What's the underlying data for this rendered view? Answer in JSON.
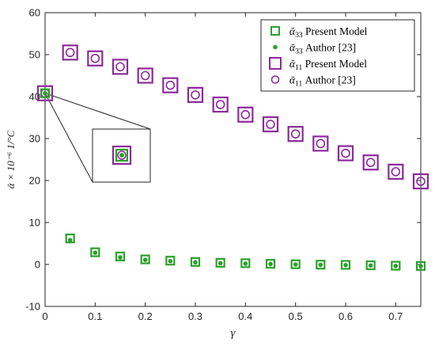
{
  "chart_data": {
    "type": "scatter",
    "title": "",
    "xlabel": "γ",
    "ylabel": "ᾱ × 10⁻⁶   1/°C",
    "xlim": [
      0,
      0.75
    ],
    "ylim": [
      -10,
      60
    ],
    "x_ticks": [
      "0",
      "0.1",
      "0.2",
      "0.3",
      "0.4",
      "0.5",
      "0.6",
      "0.7"
    ],
    "y_ticks": [
      "-10",
      "0",
      "10",
      "20",
      "30",
      "40",
      "50",
      "60"
    ],
    "grid": false,
    "legend_position": "top-right",
    "colors": {
      "alpha33": "#2ca02c",
      "alpha11": "#8b2b9a"
    },
    "series": [
      {
        "name": "ᾱ₃₃ Present Model",
        "marker": "square",
        "x": [
          0,
          0.05,
          0.1,
          0.15,
          0.2,
          0.25,
          0.3,
          0.35,
          0.4,
          0.45,
          0.5,
          0.55,
          0.6,
          0.65,
          0.7,
          0.75
        ],
        "y": [
          40.8,
          6.2,
          2.9,
          1.9,
          1.2,
          0.9,
          0.6,
          0.4,
          0.3,
          0.15,
          0.05,
          -0.05,
          -0.1,
          -0.2,
          -0.3,
          -0.35
        ]
      },
      {
        "name": "ᾱ₃₃ Author [23]",
        "marker": "dot",
        "x": [
          0,
          0.05,
          0.1,
          0.15,
          0.2,
          0.25,
          0.3,
          0.35,
          0.4,
          0.45,
          0.5,
          0.55,
          0.6,
          0.65,
          0.7,
          0.75
        ],
        "y": [
          40.8,
          5.8,
          2.8,
          1.7,
          1.1,
          0.8,
          0.5,
          0.3,
          0.2,
          0.1,
          0.0,
          -0.1,
          -0.15,
          -0.25,
          -0.35,
          -0.4
        ]
      },
      {
        "name": "ᾱ₁₁ Present Model",
        "marker": "square",
        "x": [
          0,
          0.05,
          0.1,
          0.15,
          0.2,
          0.25,
          0.3,
          0.35,
          0.4,
          0.45,
          0.5,
          0.55,
          0.6,
          0.65,
          0.7,
          0.75
        ],
        "y": [
          40.8,
          50.5,
          49.1,
          47.1,
          45.0,
          42.7,
          40.4,
          38.1,
          35.7,
          33.4,
          31.1,
          28.8,
          26.5,
          24.3,
          22.1,
          19.8
        ]
      },
      {
        "name": "ᾱ₁₁ Author [23]",
        "marker": "circle",
        "x": [
          0,
          0.05,
          0.1,
          0.15,
          0.2,
          0.25,
          0.3,
          0.35,
          0.4,
          0.45,
          0.5,
          0.55,
          0.6,
          0.65,
          0.7,
          0.75
        ],
        "y": [
          40.8,
          50.5,
          49.1,
          47.1,
          45.0,
          42.7,
          40.4,
          38.1,
          35.7,
          33.4,
          31.1,
          28.8,
          26.5,
          24.3,
          22.1,
          19.8
        ]
      }
    ],
    "legend": [
      {
        "sym": "ᾱ",
        "sub": "33",
        "text": " Present Model",
        "series": 0
      },
      {
        "sym": "ᾱ",
        "sub": "33",
        "text": " Author [23]",
        "series": 1
      },
      {
        "sym": "ᾱ",
        "sub": "11",
        "text": " Present Model",
        "series": 2
      },
      {
        "sym": "ᾱ",
        "sub": "11",
        "text": " Author [23]",
        "series": 3
      }
    ]
  }
}
